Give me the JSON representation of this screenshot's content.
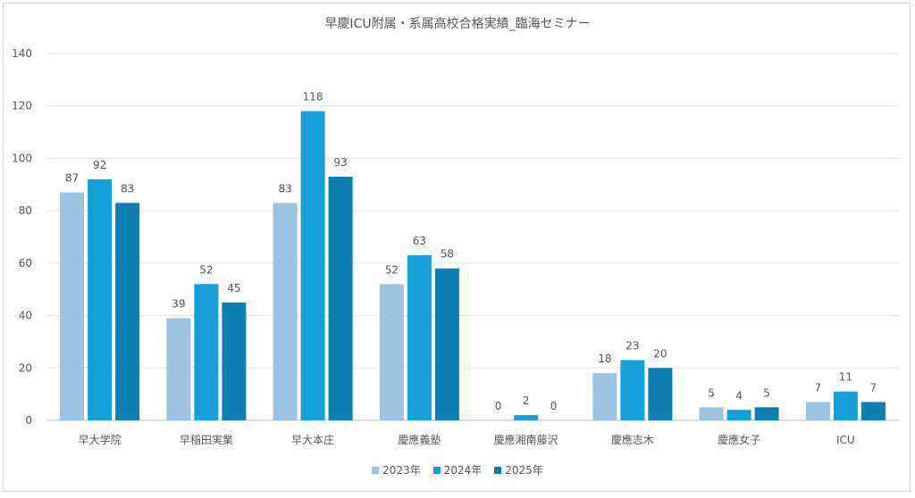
{
  "chart_data": {
    "type": "bar",
    "title": "早慶ICU附属・系属高校合格実績_臨海セミナー",
    "xlabel": "",
    "ylabel": "",
    "ylim": [
      0,
      140
    ],
    "yticks": [
      0,
      20,
      40,
      60,
      80,
      100,
      120,
      140
    ],
    "grid": true,
    "legend_position": "bottom",
    "data_labels": true,
    "categories": [
      "早大学院",
      "早稲田実業",
      "早大本庄",
      "慶應義塾",
      "慶應湘南藤沢",
      "慶應志木",
      "慶應女子",
      "ICU"
    ],
    "series": [
      {
        "name": "2023年",
        "color": "#9dc3e0",
        "values": [
          87,
          39,
          83,
          52,
          0,
          18,
          5,
          7
        ]
      },
      {
        "name": "2024年",
        "color": "#149fd6",
        "values": [
          92,
          52,
          118,
          63,
          2,
          23,
          4,
          11
        ]
      },
      {
        "name": "2025年",
        "color": "#0d7fb0",
        "values": [
          83,
          45,
          93,
          58,
          0,
          20,
          5,
          7
        ]
      }
    ]
  }
}
